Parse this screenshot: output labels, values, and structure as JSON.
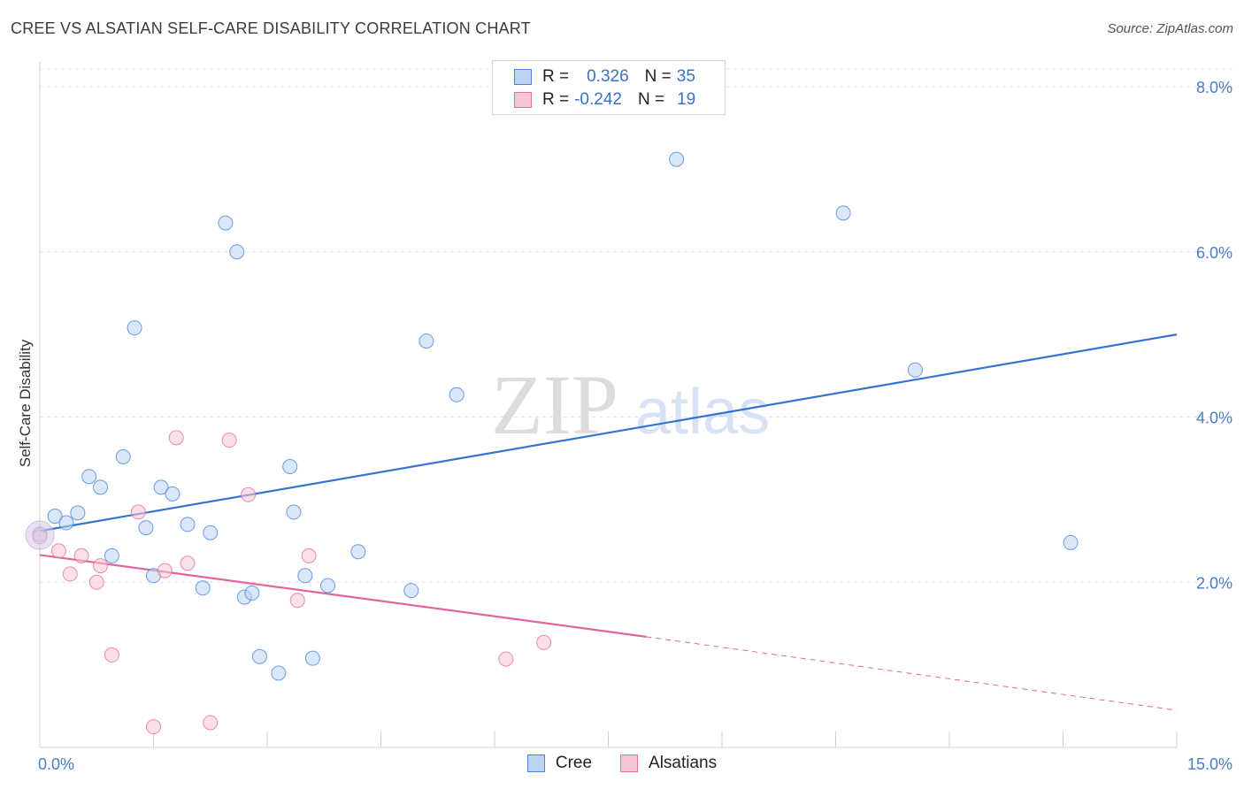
{
  "header": {
    "title": "CREE VS ALSATIAN SELF-CARE DISABILITY CORRELATION CHART",
    "source": "Source: ZipAtlas.com"
  },
  "watermark": {
    "zip": "ZIP",
    "atlas": "atlas"
  },
  "legend": {
    "rows": [
      {
        "r_label": "R =",
        "r_value": "0.326",
        "n_label": "N =",
        "n_value": "35"
      },
      {
        "r_label": "R =",
        "r_value": "-0.242",
        "n_label": "N =",
        "n_value": "19"
      }
    ]
  },
  "colors": {
    "cree": "#4a86d8",
    "cree_fill": "#bcd4f4",
    "alsatians": "#e2709a",
    "alsatians_fill": "#f7c6d6"
  },
  "chart_data": {
    "type": "scatter",
    "title": "CREE VS ALSATIAN SELF-CARE DISABILITY CORRELATION CHART",
    "xlabel": "",
    "ylabel": "Self-Care Disability",
    "xlim": [
      0,
      15
    ],
    "ylim": [
      0,
      8.3
    ],
    "x_tick_labels": [
      "0.0%",
      "15.0%"
    ],
    "y_ticks": [
      2,
      4,
      6,
      8
    ],
    "y_tick_labels": [
      "2.0%",
      "4.0%",
      "6.0%",
      "8.0%"
    ],
    "grid": true,
    "legend_position": "top-center",
    "series": [
      {
        "name": "Cree",
        "points": [
          [
            0.0,
            2.58
          ],
          [
            0.2,
            2.8
          ],
          [
            0.35,
            2.72
          ],
          [
            0.5,
            2.84
          ],
          [
            0.65,
            3.28
          ],
          [
            0.8,
            3.15
          ],
          [
            0.95,
            2.32
          ],
          [
            1.1,
            3.52
          ],
          [
            1.25,
            5.08
          ],
          [
            1.4,
            2.66
          ],
          [
            1.5,
            2.08
          ],
          [
            1.6,
            3.15
          ],
          [
            1.75,
            3.07
          ],
          [
            1.95,
            2.7
          ],
          [
            2.15,
            1.93
          ],
          [
            2.25,
            2.6
          ],
          [
            2.45,
            6.35
          ],
          [
            2.6,
            6.0
          ],
          [
            2.7,
            1.82
          ],
          [
            2.8,
            1.87
          ],
          [
            2.9,
            1.1
          ],
          [
            3.15,
            0.9
          ],
          [
            3.3,
            3.4
          ],
          [
            3.35,
            2.85
          ],
          [
            3.5,
            2.08
          ],
          [
            3.6,
            1.08
          ],
          [
            3.8,
            1.96
          ],
          [
            4.2,
            2.37
          ],
          [
            4.9,
            1.9
          ],
          [
            5.1,
            4.92
          ],
          [
            5.5,
            4.27
          ],
          [
            8.4,
            7.12
          ],
          [
            10.6,
            6.47
          ],
          [
            11.55,
            4.57
          ],
          [
            13.6,
            2.48
          ]
        ],
        "trend": {
          "x": [
            0,
            15
          ],
          "y": [
            2.62,
            5.0
          ]
        }
      },
      {
        "name": "Alsatians",
        "points": [
          [
            0.0,
            2.55
          ],
          [
            0.25,
            2.38
          ],
          [
            0.4,
            2.1
          ],
          [
            0.55,
            2.32
          ],
          [
            0.75,
            2.0
          ],
          [
            0.8,
            2.2
          ],
          [
            0.95,
            1.12
          ],
          [
            1.3,
            2.85
          ],
          [
            1.5,
            0.25
          ],
          [
            1.65,
            2.14
          ],
          [
            1.8,
            3.75
          ],
          [
            1.95,
            2.23
          ],
          [
            2.25,
            0.3
          ],
          [
            2.5,
            3.72
          ],
          [
            2.75,
            3.06
          ],
          [
            3.4,
            1.78
          ],
          [
            3.55,
            2.32
          ],
          [
            6.15,
            1.07
          ],
          [
            6.65,
            1.27
          ]
        ],
        "trend": {
          "x": [
            0,
            8.0
          ],
          "y": [
            2.33,
            1.34
          ]
        },
        "trend_dashed": {
          "x": [
            8.0,
            15
          ],
          "y": [
            1.34,
            0.45
          ]
        }
      }
    ]
  }
}
